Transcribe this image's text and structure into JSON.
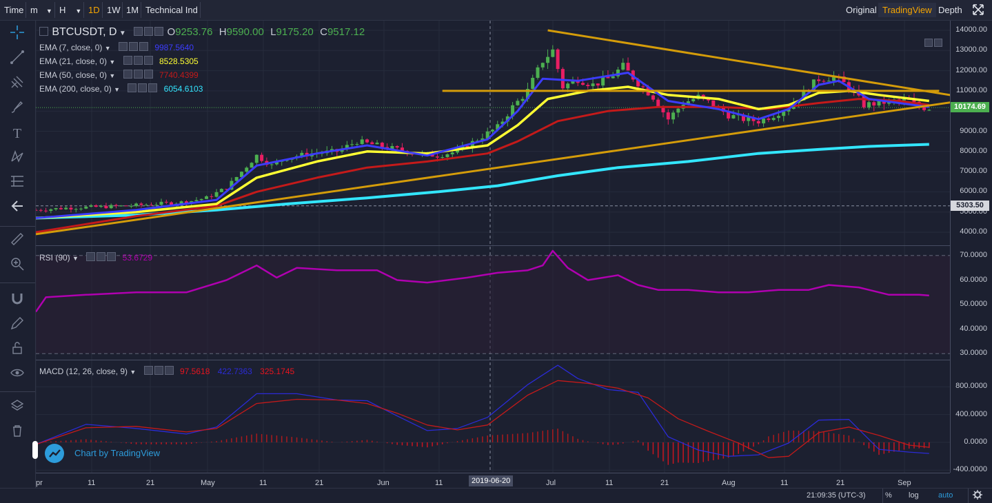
{
  "toolbar": {
    "time_label": "Time",
    "minutes": "m",
    "hours": "H",
    "intervals": [
      "1D",
      "1W",
      "1M"
    ],
    "active_interval": "1D",
    "indicators_label": "Technical Ind",
    "views": [
      "Original",
      "TradingView",
      "Depth"
    ],
    "active_view": "TradingView",
    "fullscreen_icon": "fullscreen-icon"
  },
  "sidebar_icons": [
    "crosshair-icon",
    "trend-line-icon",
    "pitchfork-icon",
    "brush-icon",
    "text-icon",
    "pattern-icon",
    "fib-icon",
    "back-arrow-icon",
    "ruler-icon",
    "zoom-icon",
    "magnet-icon",
    "lock-drawing-icon",
    "lock-icon",
    "eye-icon",
    "layers-icon",
    "trash-icon"
  ],
  "main_legend": {
    "symbol": "BTCUSDT, D",
    "o_label": "O",
    "o": "9253.76",
    "h_label": "H",
    "h": "9590.00",
    "l_label": "L",
    "l": "9175.20",
    "c_label": "C",
    "c": "9517.12"
  },
  "ema_legends": [
    {
      "label": "EMA (7, close, 0)",
      "value": "9987.5640",
      "color": "#3c3cff"
    },
    {
      "label": "EMA (21, close, 0)",
      "value": "8528.5305",
      "color": "#ffff33"
    },
    {
      "label": "EMA (50, close, 0)",
      "value": "7740.4399",
      "color": "#c41a1a"
    },
    {
      "label": "EMA (200, close, 0)",
      "value": "6054.6103",
      "color": "#33e6ff"
    }
  ],
  "rsi_legend": {
    "label": "RSI (90)",
    "value": "53.6729",
    "color": "#b000b0"
  },
  "macd_legend": {
    "label": "MACD (12, 26, close, 9)",
    "v1": "97.5618",
    "v2": "422.7363",
    "v3": "325.1745"
  },
  "price_axis": [
    "14000.00",
    "13000.00",
    "12000.00",
    "11000.00",
    "10000.00",
    "9000.00",
    "8000.00",
    "7000.00",
    "6000.00",
    "5000.00",
    "4000.00"
  ],
  "price_tags": {
    "last": "10174.69",
    "line": "5303.50"
  },
  "rsi_axis": [
    "70.0000",
    "60.0000",
    "50.0000",
    "40.0000",
    "30.0000"
  ],
  "macd_axis": [
    "800.0000",
    "400.0000",
    "0.0000",
    "-400.0000"
  ],
  "x_axis": [
    "pr",
    "11",
    "21",
    "May",
    "11",
    "21",
    "Jun",
    "11",
    "21",
    "Jul",
    "11",
    "21",
    "Aug",
    "11",
    "21",
    "Sep"
  ],
  "crosshair_date": "2019-06-20",
  "branding": "Chart by TradingView",
  "status": {
    "time": "21:09:35 (UTC-3)",
    "percent": "%",
    "log": "log",
    "auto": "auto",
    "settings_icon": "settings-icon"
  },
  "colors": {
    "bull": "#4caf50",
    "bear": "#e91e63",
    "triangle": "#d49c0a",
    "last_price": "#4caf50",
    "accent": "#f7a600"
  },
  "chart_data": {
    "type": "candlestick",
    "symbol": "BTCUSDT",
    "interval": "1D",
    "ylim": [
      3500,
      14500
    ],
    "close_points": [
      [
        0,
        5100
      ],
      [
        6,
        5200
      ],
      [
        12,
        5250
      ],
      [
        18,
        5300
      ],
      [
        24,
        5400
      ],
      [
        30,
        5500
      ],
      [
        34,
        5700
      ],
      [
        38,
        6200
      ],
      [
        41,
        7000
      ],
      [
        44,
        7800
      ],
      [
        47,
        7300
      ],
      [
        50,
        7700
      ],
      [
        55,
        7900
      ],
      [
        60,
        8000
      ],
      [
        64,
        8500
      ],
      [
        68,
        8300
      ],
      [
        72,
        8100
      ],
      [
        76,
        7900
      ],
      [
        80,
        7800
      ],
      [
        84,
        8000
      ],
      [
        88,
        8600
      ],
      [
        92,
        9200
      ],
      [
        95,
        10200
      ],
      [
        98,
        11000
      ],
      [
        101,
        12500
      ],
      [
        103,
        13000
      ],
      [
        105,
        11200
      ],
      [
        108,
        11600
      ],
      [
        111,
        11300
      ],
      [
        114,
        11600
      ],
      [
        117,
        12200
      ],
      [
        120,
        11400
      ],
      [
        123,
        10700
      ],
      [
        126,
        9600
      ],
      [
        129,
        10400
      ],
      [
        132,
        10700
      ],
      [
        135,
        10300
      ],
      [
        138,
        9800
      ],
      [
        141,
        9600
      ],
      [
        144,
        9500
      ],
      [
        147,
        9800
      ],
      [
        150,
        10200
      ],
      [
        153,
        10900
      ],
      [
        156,
        11600
      ],
      [
        159,
        11700
      ],
      [
        162,
        11200
      ],
      [
        165,
        10300
      ],
      [
        168,
        10400
      ],
      [
        171,
        10500
      ],
      [
        174,
        10500
      ],
      [
        176,
        10200
      ],
      [
        178,
        10150
      ]
    ],
    "ema7": [
      [
        0,
        4700
      ],
      [
        20,
        5100
      ],
      [
        36,
        5600
      ],
      [
        44,
        7300
      ],
      [
        56,
        7900
      ],
      [
        66,
        8300
      ],
      [
        78,
        7800
      ],
      [
        90,
        8600
      ],
      [
        96,
        10000
      ],
      [
        101,
        11600
      ],
      [
        108,
        11500
      ],
      [
        118,
        11900
      ],
      [
        126,
        10500
      ],
      [
        136,
        10100
      ],
      [
        144,
        9600
      ],
      [
        150,
        10100
      ],
      [
        156,
        11300
      ],
      [
        160,
        11500
      ],
      [
        166,
        10600
      ],
      [
        172,
        10400
      ],
      [
        178,
        10200
      ]
    ],
    "ema21": [
      [
        0,
        4700
      ],
      [
        20,
        5000
      ],
      [
        36,
        5400
      ],
      [
        44,
        6700
      ],
      [
        56,
        7500
      ],
      [
        66,
        8000
      ],
      [
        78,
        7900
      ],
      [
        90,
        8300
      ],
      [
        96,
        9300
      ],
      [
        102,
        10600
      ],
      [
        110,
        11000
      ],
      [
        118,
        11200
      ],
      [
        126,
        10800
      ],
      [
        136,
        10600
      ],
      [
        144,
        10100
      ],
      [
        150,
        10300
      ],
      [
        156,
        10900
      ],
      [
        162,
        11000
      ],
      [
        168,
        10800
      ],
      [
        178,
        10500
      ]
    ],
    "ema50": [
      [
        0,
        4000
      ],
      [
        20,
        4800
      ],
      [
        36,
        5300
      ],
      [
        44,
        6000
      ],
      [
        56,
        6700
      ],
      [
        66,
        7200
      ],
      [
        78,
        7500
      ],
      [
        90,
        7900
      ],
      [
        96,
        8500
      ],
      [
        104,
        9500
      ],
      [
        114,
        10000
      ],
      [
        124,
        10200
      ],
      [
        136,
        10200
      ],
      [
        146,
        10100
      ],
      [
        156,
        10400
      ],
      [
        164,
        10600
      ],
      [
        172,
        10500
      ],
      [
        178,
        10300
      ]
    ],
    "ema200": [
      [
        0,
        4700
      ],
      [
        20,
        4850
      ],
      [
        36,
        5100
      ],
      [
        50,
        5400
      ],
      [
        66,
        5700
      ],
      [
        80,
        6000
      ],
      [
        92,
        6300
      ],
      [
        104,
        6800
      ],
      [
        116,
        7200
      ],
      [
        130,
        7500
      ],
      [
        144,
        7900
      ],
      [
        156,
        8100
      ],
      [
        166,
        8250
      ],
      [
        178,
        8350
      ]
    ],
    "triangle_upper": [
      [
        102,
        14000
      ],
      [
        187,
        10600
      ]
    ],
    "triangle_lower": [
      [
        0,
        3900
      ],
      [
        187,
        10600
      ]
    ],
    "resistance": [
      [
        81,
        11000
      ],
      [
        180,
        11000
      ]
    ],
    "rsi": [
      [
        0,
        47
      ],
      [
        2,
        53
      ],
      [
        10,
        54
      ],
      [
        20,
        55
      ],
      [
        30,
        55
      ],
      [
        38,
        60
      ],
      [
        44,
        66
      ],
      [
        48,
        61
      ],
      [
        52,
        65
      ],
      [
        60,
        64
      ],
      [
        68,
        64
      ],
      [
        72,
        60
      ],
      [
        78,
        59
      ],
      [
        86,
        61
      ],
      [
        92,
        63
      ],
      [
        98,
        64
      ],
      [
        101,
        66
      ],
      [
        103,
        72
      ],
      [
        106,
        65
      ],
      [
        110,
        60
      ],
      [
        116,
        62
      ],
      [
        120,
        58
      ],
      [
        124,
        56
      ],
      [
        130,
        56
      ],
      [
        136,
        55
      ],
      [
        142,
        55
      ],
      [
        148,
        56
      ],
      [
        154,
        56
      ],
      [
        158,
        58
      ],
      [
        164,
        57
      ],
      [
        170,
        54
      ],
      [
        176,
        54
      ],
      [
        178,
        53.7
      ]
    ],
    "macd": [
      [
        0,
        -30
      ],
      [
        10,
        260
      ],
      [
        20,
        200
      ],
      [
        30,
        120
      ],
      [
        36,
        220
      ],
      [
        44,
        700
      ],
      [
        52,
        700
      ],
      [
        60,
        610
      ],
      [
        66,
        600
      ],
      [
        72,
        380
      ],
      [
        78,
        170
      ],
      [
        84,
        200
      ],
      [
        90,
        360
      ],
      [
        98,
        830
      ],
      [
        104,
        1110
      ],
      [
        108,
        920
      ],
      [
        114,
        760
      ],
      [
        120,
        720
      ],
      [
        126,
        80
      ],
      [
        132,
        -110
      ],
      [
        138,
        -200
      ],
      [
        144,
        -180
      ],
      [
        150,
        -10
      ],
      [
        156,
        320
      ],
      [
        162,
        330
      ],
      [
        168,
        -100
      ],
      [
        174,
        -140
      ],
      [
        178,
        -160
      ]
    ],
    "signal": [
      [
        0,
        -30
      ],
      [
        10,
        210
      ],
      [
        20,
        230
      ],
      [
        30,
        150
      ],
      [
        36,
        200
      ],
      [
        44,
        560
      ],
      [
        52,
        620
      ],
      [
        60,
        610
      ],
      [
        66,
        560
      ],
      [
        72,
        420
      ],
      [
        78,
        250
      ],
      [
        84,
        180
      ],
      [
        90,
        250
      ],
      [
        98,
        680
      ],
      [
        104,
        890
      ],
      [
        110,
        850
      ],
      [
        116,
        780
      ],
      [
        122,
        640
      ],
      [
        128,
        340
      ],
      [
        134,
        160
      ],
      [
        140,
        -10
      ],
      [
        146,
        -220
      ],
      [
        150,
        -200
      ],
      [
        156,
        140
      ],
      [
        162,
        220
      ],
      [
        168,
        100
      ],
      [
        174,
        -40
      ],
      [
        178,
        -70
      ]
    ]
  }
}
